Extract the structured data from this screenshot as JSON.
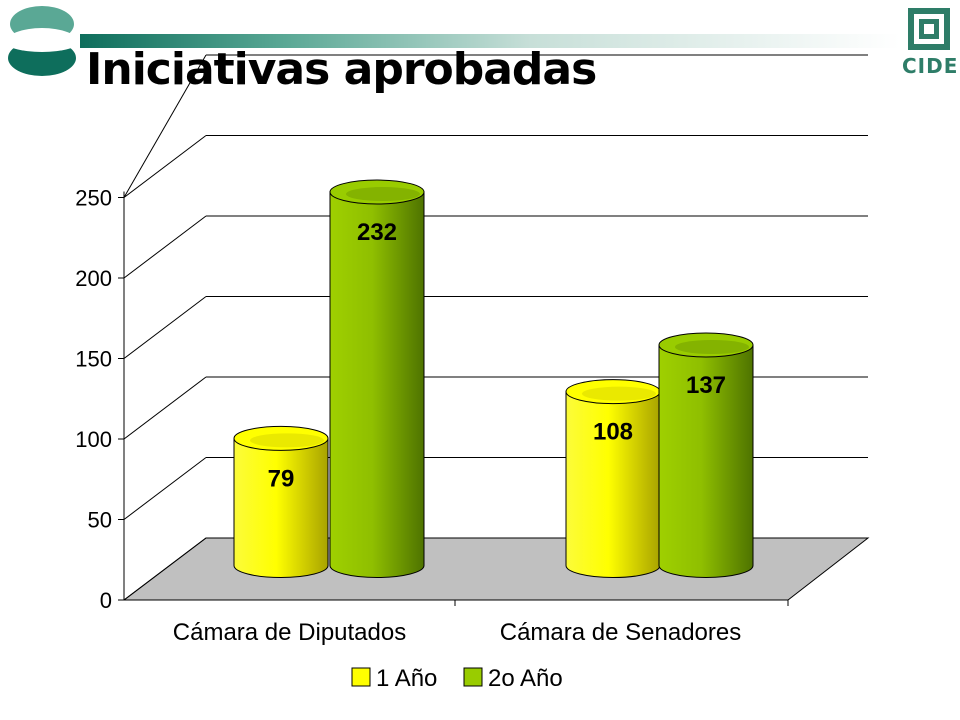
{
  "slide": {
    "title": "Iniciativas aprobadas",
    "logo_text": "CIDE"
  },
  "colors": {
    "accent": "#0e6e5c",
    "series_1": "#ffff00",
    "series_2": "#99cc00",
    "floor": "#c0c0c0"
  },
  "chart_data": {
    "type": "bar",
    "bar_shape": "cylinder-3d",
    "categories": [
      "Cámara de Diputados",
      "Cámara de Senadores"
    ],
    "series": [
      {
        "name": "1 Año",
        "values": [
          79,
          108
        ]
      },
      {
        "name": "2o Año",
        "values": [
          232,
          137
        ]
      }
    ],
    "y_ticks": [
      0,
      50,
      100,
      150,
      200,
      250
    ],
    "ylim": [
      0,
      250
    ],
    "grid": true,
    "legend_position": "bottom",
    "data_labels": true
  }
}
